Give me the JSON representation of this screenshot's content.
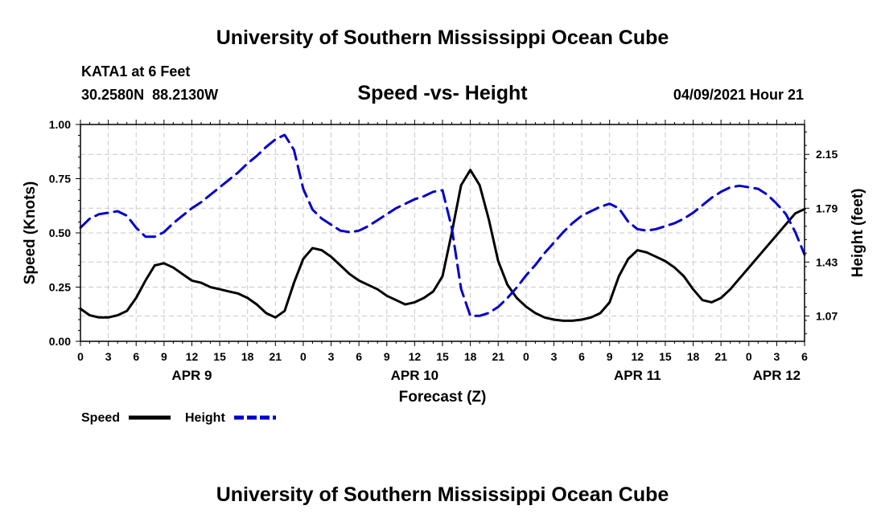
{
  "header": {
    "title_top": "University of Southern Mississippi Ocean Cube",
    "station": "KATA1 at 6 Feet",
    "coords": "30.2580N  88.2130W",
    "date_hour": "04/09/2021 Hour 21",
    "title_bottom": "University of Southern Mississippi Ocean Cube"
  },
  "chart_data": {
    "type": "line",
    "title": "Speed -vs- Height",
    "xlabel": "Forecast (Z)",
    "ylabel": "Speed (Knots)",
    "y2label": "Height (feet)",
    "xlim": [
      0,
      78
    ],
    "ylim": [
      0,
      1
    ],
    "y2lim": [
      0.9,
      2.35
    ],
    "x_ticks": [
      0,
      3,
      6,
      9,
      12,
      15,
      18,
      21,
      24,
      27,
      30,
      33,
      36,
      39,
      42,
      45,
      48,
      51,
      54,
      57,
      60,
      63,
      66,
      69,
      72,
      75,
      78
    ],
    "x_tick_labels": [
      "0",
      "3",
      "6",
      "9",
      "12",
      "15",
      "18",
      "21",
      "0",
      "3",
      "6",
      "9",
      "12",
      "15",
      "18",
      "21",
      "0",
      "3",
      "6",
      "9",
      "12",
      "15",
      "18",
      "21",
      "0",
      "3",
      "6"
    ],
    "y_ticks": [
      0,
      0.25,
      0.5,
      0.75,
      1.0
    ],
    "y_tick_labels": [
      "0.00",
      "0.25",
      "0.50",
      "0.75",
      "1.00"
    ],
    "y2_ticks": [
      1.07,
      1.43,
      1.79,
      2.15
    ],
    "y2_tick_labels": [
      "1.07",
      "1.43",
      "1.79",
      "2.15"
    ],
    "date_labels": [
      {
        "label": "APR 9",
        "x": 12
      },
      {
        "label": "APR 10",
        "x": 36
      },
      {
        "label": "APR 11",
        "x": 60
      },
      {
        "label": "APR 12",
        "x": 75
      }
    ],
    "grid": true,
    "series": [
      {
        "name": "Speed",
        "axis": "left",
        "color": "#000000",
        "style": "solid",
        "x": [
          0,
          1,
          2,
          3,
          4,
          5,
          6,
          7,
          8,
          9,
          10,
          11,
          12,
          13,
          14,
          15,
          16,
          17,
          18,
          19,
          20,
          21,
          22,
          23,
          24,
          25,
          26,
          27,
          28,
          29,
          30,
          31,
          32,
          33,
          34,
          35,
          36,
          37,
          38,
          39,
          40,
          41,
          42,
          43,
          44,
          45,
          46,
          47,
          48,
          49,
          50,
          51,
          52,
          53,
          54,
          55,
          56,
          57,
          58,
          59,
          60,
          61,
          62,
          63,
          64,
          65,
          66,
          67,
          68,
          69,
          70,
          71,
          72,
          73,
          74,
          75,
          76,
          77,
          78
        ],
        "values": [
          0.15,
          0.12,
          0.11,
          0.11,
          0.12,
          0.14,
          0.2,
          0.28,
          0.35,
          0.36,
          0.34,
          0.31,
          0.28,
          0.27,
          0.25,
          0.24,
          0.23,
          0.22,
          0.2,
          0.17,
          0.13,
          0.11,
          0.14,
          0.27,
          0.38,
          0.43,
          0.42,
          0.39,
          0.35,
          0.31,
          0.28,
          0.26,
          0.24,
          0.21,
          0.19,
          0.17,
          0.18,
          0.2,
          0.23,
          0.3,
          0.5,
          0.72,
          0.79,
          0.72,
          0.56,
          0.37,
          0.26,
          0.2,
          0.16,
          0.13,
          0.11,
          0.1,
          0.095,
          0.095,
          0.1,
          0.11,
          0.13,
          0.18,
          0.3,
          0.38,
          0.42,
          0.41,
          0.39,
          0.37,
          0.34,
          0.3,
          0.24,
          0.19,
          0.18,
          0.2,
          0.24,
          0.29,
          0.34,
          0.39,
          0.44,
          0.49,
          0.54,
          0.59,
          0.61
        ]
      },
      {
        "name": "Height",
        "axis": "right",
        "color": "#0000cc",
        "style": "dashed",
        "x": [
          0,
          1,
          2,
          3,
          4,
          5,
          6,
          7,
          8,
          9,
          10,
          11,
          12,
          13,
          14,
          15,
          16,
          17,
          18,
          19,
          20,
          21,
          22,
          23,
          24,
          25,
          26,
          27,
          28,
          29,
          30,
          31,
          32,
          33,
          34,
          35,
          36,
          37,
          38,
          39,
          40,
          41,
          42,
          43,
          44,
          45,
          46,
          47,
          48,
          49,
          50,
          51,
          52,
          53,
          54,
          55,
          56,
          57,
          58,
          59,
          60,
          61,
          62,
          63,
          64,
          65,
          66,
          67,
          68,
          69,
          70,
          71,
          72,
          73,
          74,
          75,
          76,
          77,
          78
        ],
        "values": [
          1.66,
          1.72,
          1.75,
          1.76,
          1.77,
          1.74,
          1.66,
          1.6,
          1.6,
          1.63,
          1.69,
          1.74,
          1.79,
          1.83,
          1.88,
          1.93,
          1.98,
          2.03,
          2.09,
          2.14,
          2.2,
          2.25,
          2.28,
          2.18,
          1.92,
          1.78,
          1.72,
          1.68,
          1.64,
          1.63,
          1.64,
          1.67,
          1.71,
          1.75,
          1.79,
          1.82,
          1.85,
          1.87,
          1.9,
          1.91,
          1.66,
          1.25,
          1.07,
          1.07,
          1.09,
          1.13,
          1.19,
          1.26,
          1.34,
          1.41,
          1.49,
          1.56,
          1.63,
          1.69,
          1.74,
          1.77,
          1.8,
          1.82,
          1.79,
          1.7,
          1.65,
          1.64,
          1.65,
          1.67,
          1.69,
          1.72,
          1.76,
          1.81,
          1.86,
          1.9,
          1.93,
          1.94,
          1.93,
          1.92,
          1.88,
          1.82,
          1.75,
          1.63,
          1.48
        ]
      }
    ],
    "legend": [
      {
        "label": "Speed",
        "color": "#000000",
        "style": "solid"
      },
      {
        "label": "Height",
        "color": "#0000cc",
        "style": "dashed"
      }
    ]
  }
}
